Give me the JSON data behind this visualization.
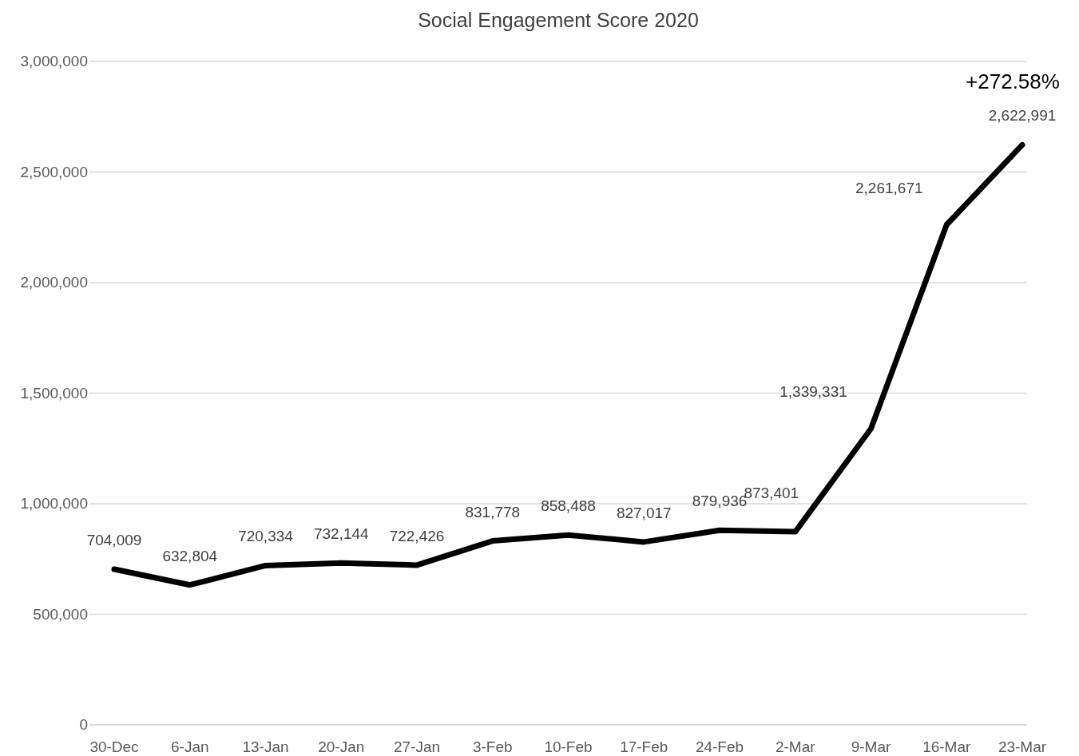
{
  "chart_data": {
    "type": "line",
    "title": "Social Engagement Score 2020",
    "categories": [
      "30-Dec",
      "6-Jan",
      "13-Jan",
      "20-Jan",
      "27-Jan",
      "3-Feb",
      "10-Feb",
      "17-Feb",
      "24-Feb",
      "2-Mar",
      "9-Mar",
      "16-Mar",
      "23-Mar"
    ],
    "series": [
      {
        "color": "#000000",
        "values": [
          704009,
          632804,
          720334,
          732144,
          722426,
          831778,
          858488,
          827017,
          879936,
          873401,
          1339331,
          2261671,
          2622991
        ],
        "value_labels": [
          "704,009",
          "632,804",
          "720,334",
          "732,144",
          "722,426",
          "831,778",
          "858,488",
          "827,017",
          "879,936",
          "873,401",
          "1,339,331",
          "2,261,671",
          "2,622,991"
        ]
      }
    ],
    "ylim": [
      0,
      3000000
    ],
    "yticks": [
      0,
      {
        "value": 500000,
        "label": "500,000"
      },
      {
        "value": 1000000,
        "label": "1,000,000"
      },
      {
        "value": 1500000,
        "label": "1,500,000"
      },
      {
        "value": 2000000,
        "label": "2,000,000"
      },
      {
        "value": 2500000,
        "label": "2,500,000"
      },
      {
        "value": 3000000,
        "label": "3,000,000"
      }
    ],
    "grid": "y",
    "marker": "none",
    "line_style": "solid",
    "annotations": [
      {
        "text": "+272.58%",
        "x": "23-Mar",
        "y": 2622991
      }
    ]
  }
}
